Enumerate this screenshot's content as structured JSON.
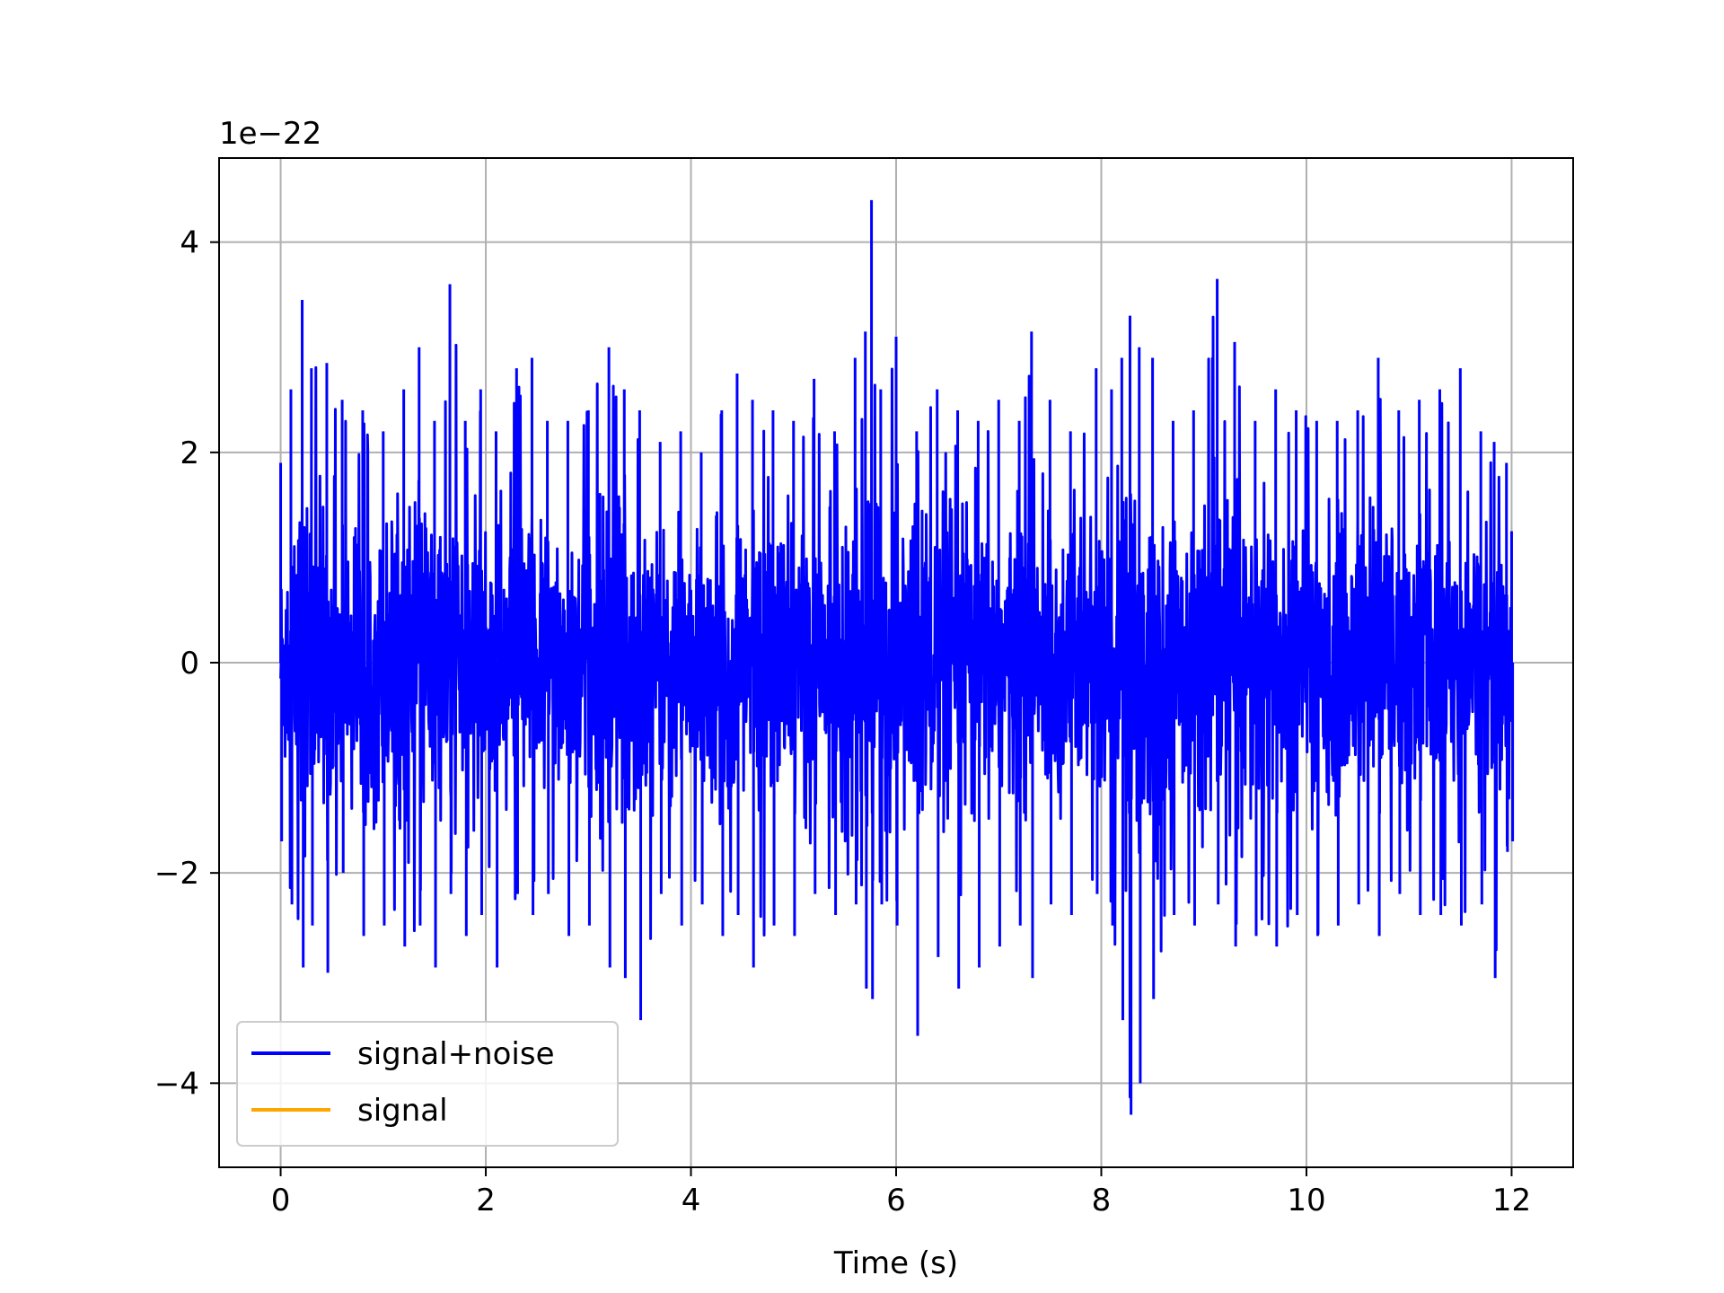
{
  "chart_data": {
    "type": "line",
    "title": "",
    "xlabel": "Time (s)",
    "ylabel": "",
    "y_offset_label": "1e−22",
    "xlim": [
      -0.6,
      12.6
    ],
    "ylim": [
      -4.8,
      4.8
    ],
    "x_ticks": [
      0,
      2,
      4,
      6,
      8,
      10,
      12
    ],
    "x_tick_labels": [
      "0",
      "2",
      "4",
      "6",
      "8",
      "10",
      "12"
    ],
    "y_ticks": [
      -4,
      -2,
      0,
      2,
      4
    ],
    "y_tick_labels": [
      "−4",
      "−2",
      "0",
      "2",
      "4"
    ],
    "grid": true,
    "legend_placement": "lower-left",
    "series": [
      {
        "name": "signal+noise",
        "color": "#0000ff",
        "x_range": [
          0,
          12
        ],
        "envelope_peaks": [
          [
            0.0,
            1.9,
            -1.7
          ],
          [
            0.1,
            2.6,
            -2.3
          ],
          [
            0.21,
            3.45,
            -2.9
          ],
          [
            0.3,
            2.8,
            -2.5
          ],
          [
            0.45,
            2.85,
            -2.95
          ],
          [
            0.6,
            2.5,
            -2.0
          ],
          [
            0.8,
            2.4,
            -2.6
          ],
          [
            1.0,
            2.2,
            -2.5
          ],
          [
            1.2,
            2.6,
            -2.7
          ],
          [
            1.35,
            3.0,
            -2.5
          ],
          [
            1.5,
            2.3,
            -2.9
          ],
          [
            1.65,
            3.6,
            -2.2
          ],
          [
            1.8,
            2.3,
            -2.6
          ],
          [
            1.95,
            2.6,
            -2.4
          ],
          [
            2.1,
            2.2,
            -2.9
          ],
          [
            2.3,
            2.8,
            -2.2
          ],
          [
            2.45,
            2.9,
            -2.4
          ],
          [
            2.6,
            2.3,
            -2.2
          ],
          [
            2.8,
            2.3,
            -2.6
          ],
          [
            3.0,
            2.4,
            -2.5
          ],
          [
            3.2,
            3.0,
            -2.9
          ],
          [
            3.35,
            2.6,
            -3.0
          ],
          [
            3.5,
            2.4,
            -3.4
          ],
          [
            3.7,
            2.1,
            -2.2
          ],
          [
            3.9,
            2.2,
            -2.5
          ],
          [
            4.1,
            2.0,
            -2.3
          ],
          [
            4.3,
            2.4,
            -2.6
          ],
          [
            4.45,
            2.75,
            -2.4
          ],
          [
            4.6,
            2.5,
            -2.9
          ],
          [
            4.8,
            2.4,
            -2.5
          ],
          [
            5.0,
            2.3,
            -2.6
          ],
          [
            5.2,
            2.7,
            -2.2
          ],
          [
            5.4,
            2.2,
            -2.4
          ],
          [
            5.6,
            2.9,
            -2.3
          ],
          [
            5.7,
            3.15,
            -3.1
          ],
          [
            5.76,
            4.4,
            -3.2
          ],
          [
            5.85,
            2.6,
            -2.3
          ],
          [
            6.0,
            3.1,
            -2.5
          ],
          [
            6.2,
            2.2,
            -3.55
          ],
          [
            6.4,
            2.6,
            -2.8
          ],
          [
            6.6,
            2.4,
            -3.1
          ],
          [
            6.8,
            2.3,
            -2.9
          ],
          [
            7.0,
            2.5,
            -2.7
          ],
          [
            7.2,
            2.3,
            -2.5
          ],
          [
            7.32,
            3.15,
            -3.0
          ],
          [
            7.5,
            2.5,
            -2.3
          ],
          [
            7.7,
            2.2,
            -2.4
          ],
          [
            7.95,
            2.8,
            -2.2
          ],
          [
            8.1,
            2.6,
            -2.5
          ],
          [
            8.2,
            2.9,
            -3.4
          ],
          [
            8.28,
            3.3,
            -4.3
          ],
          [
            8.37,
            3.0,
            -4.0
          ],
          [
            8.5,
            2.9,
            -3.2
          ],
          [
            8.7,
            2.3,
            -2.4
          ],
          [
            8.9,
            2.4,
            -2.5
          ],
          [
            9.13,
            3.65,
            -2.3
          ],
          [
            9.3,
            3.05,
            -2.7
          ],
          [
            9.5,
            2.3,
            -2.6
          ],
          [
            9.7,
            2.6,
            -2.7
          ],
          [
            9.9,
            2.4,
            -2.4
          ],
          [
            10.1,
            2.3,
            -2.6
          ],
          [
            10.3,
            2.3,
            -2.5
          ],
          [
            10.5,
            2.4,
            -2.3
          ],
          [
            10.7,
            2.9,
            -2.6
          ],
          [
            10.9,
            2.4,
            -2.2
          ],
          [
            11.1,
            2.5,
            -2.4
          ],
          [
            11.3,
            2.6,
            -2.4
          ],
          [
            11.5,
            2.8,
            -2.5
          ],
          [
            11.7,
            2.2,
            -2.3
          ],
          [
            11.83,
            2.1,
            -3.0
          ],
          [
            11.95,
            1.9,
            -1.8
          ],
          [
            12.0,
            1.25,
            -1.7
          ]
        ]
      },
      {
        "name": "signal",
        "color": "#ffa500",
        "x_range": [
          0,
          12
        ],
        "values_note": ""
      }
    ]
  }
}
